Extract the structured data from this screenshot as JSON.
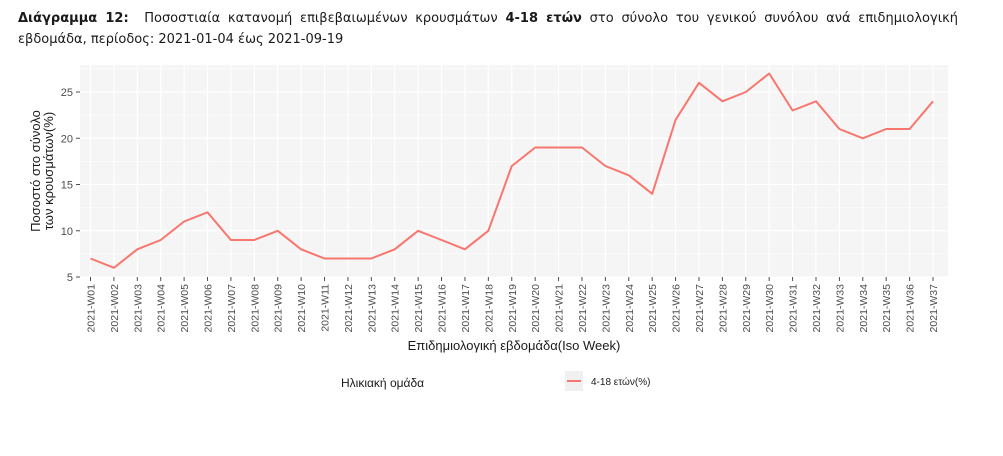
{
  "caption": {
    "label": "Διάγραμμα 12:",
    "text_pre": "Ποσοστιαία κατανομή επιβεβαιωμένων κρουσμάτων",
    "bold_group": "4-18 ετών",
    "text_post": "στο σύνολο του γενικού συνόλου ανά επιδημιολογική εβδομάδα, περίοδος: 2021-01-04 έως 2021-09-19"
  },
  "chart_data": {
    "type": "line",
    "title": "Διάγραμμα 12: Ποσοστιαία κατανομή επιβεβαιωμένων κρουσμάτων 4-18 ετών στο σύνολο του γενικού συνόλου ανά επιδημιολογική εβδομάδα, περίοδος: 2021-01-04 έως 2021-09-19",
    "xlabel": "Επιδημιολογική εβδομάδα(Iso Week)",
    "ylabel_line1": "Ποσοστό στο σύνολο",
    "ylabel_line2": "των κρουσμάτων(%)",
    "ylim": [
      5,
      27.5
    ],
    "yticks": [
      5,
      10,
      15,
      20,
      25
    ],
    "grid": true,
    "legend_position": "bottom",
    "legend_title": "Ηλικιακή ομάδα",
    "categories": [
      "2021-W01",
      "2021-W02",
      "2021-W03",
      "2021-W04",
      "2021-W05",
      "2021-W06",
      "2021-W07",
      "2021-W08",
      "2021-W09",
      "2021-W10",
      "2021-W11",
      "2021-W12",
      "2021-W13",
      "2021-W14",
      "2021-W15",
      "2021-W16",
      "2021-W17",
      "2021-W18",
      "2021-W19",
      "2021-W20",
      "2021-W21",
      "2021-W22",
      "2021-W23",
      "2021-W24",
      "2021-W25",
      "2021-W26",
      "2021-W27",
      "2021-W28",
      "2021-W29",
      "2021-W30",
      "2021-W31",
      "2021-W32",
      "2021-W33",
      "2021-W34",
      "2021-W35",
      "2021-W36",
      "2021-W37"
    ],
    "series": [
      {
        "name": "4-18 ετών(%)",
        "color": "#f8766d",
        "values": [
          7,
          6,
          8,
          9,
          11,
          12,
          9,
          9,
          10,
          8,
          7,
          7,
          7,
          8,
          10,
          9,
          8,
          10,
          17,
          19,
          19,
          19,
          17,
          16,
          14,
          22,
          26,
          24,
          25,
          27,
          23,
          24,
          21,
          20,
          21,
          21,
          24
        ]
      }
    ]
  },
  "colors": {
    "panel_bg": "#f5f5f5",
    "grid": "#ffffff",
    "axis_text": "#4d4d4d",
    "line": "#f8766d"
  }
}
